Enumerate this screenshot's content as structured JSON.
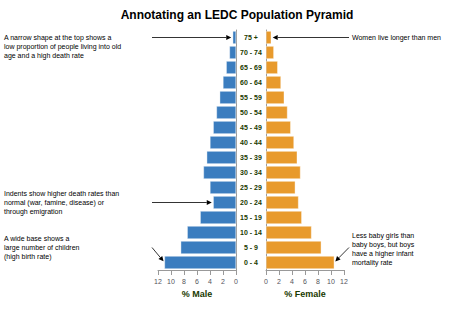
{
  "chart_data": {
    "type": "bar",
    "orientation": "horizontal",
    "title": "Annotating an LEDC Population Pyramid",
    "categories": [
      "0 - 4",
      "5 - 9",
      "10 - 14",
      "15 - 19",
      "20 - 24",
      "25 - 29",
      "30 - 34",
      "35 - 39",
      "40 - 44",
      "45 - 49",
      "50 - 54",
      "55 - 59",
      "60 - 64",
      "65 - 69",
      "70 - 74",
      "75 +"
    ],
    "series": [
      {
        "xlabel": "% Male",
        "color": "#3b7dbf",
        "values": [
          11.0,
          8.5,
          7.5,
          5.5,
          3.5,
          4.0,
          5.0,
          4.5,
          4.0,
          3.5,
          3.0,
          2.5,
          2.0,
          1.5,
          1.0,
          0.5
        ]
      },
      {
        "xlabel": "% Female",
        "color": "#e89a2c",
        "values": [
          10.5,
          8.5,
          7.0,
          5.5,
          5.0,
          4.5,
          5.3,
          4.8,
          4.3,
          3.8,
          3.3,
          2.8,
          2.3,
          1.8,
          1.2,
          0.8
        ]
      }
    ],
    "xlim": [
      0,
      12
    ],
    "xticks": [
      0,
      2,
      4,
      6,
      8,
      10,
      12
    ],
    "grid": false,
    "annotations": [
      "A narrow shape at the top shows a\nlow proportion of people living into old\nage and a high death rate",
      "Indents show higher death rates than\nnormal (war, famine, disease) or\nthrough emigration",
      "A wide base shows a\nlarge number of children\n(high birth rate)",
      "Women live longer than men",
      "Less baby girls than\nbaby boys, but boys\nhave a higher infant\nmortality rate"
    ]
  }
}
